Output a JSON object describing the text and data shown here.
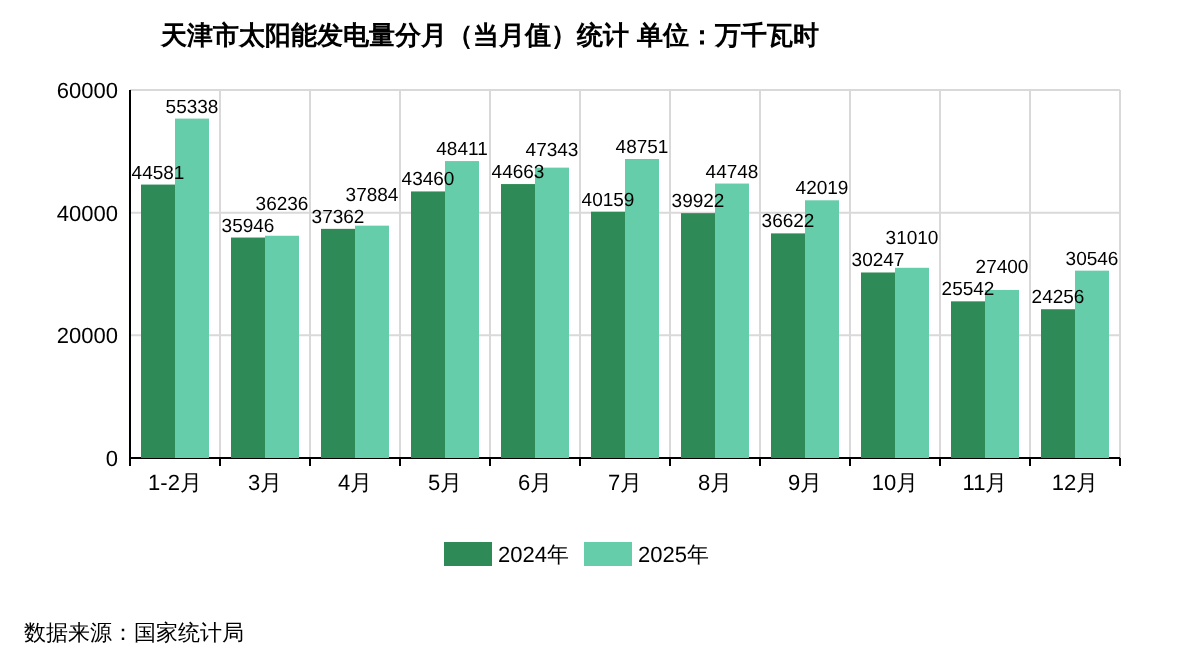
{
  "chart_data": {
    "type": "bar",
    "title": "天津市太阳能发电量分月（当月值）统计  单位：万千瓦时",
    "categories": [
      "1-2月",
      "3月",
      "4月",
      "5月",
      "6月",
      "7月",
      "8月",
      "9月",
      "10月",
      "11月",
      "12月"
    ],
    "series": [
      {
        "name": "2024年",
        "color": "#2e8b57",
        "values": [
          44581,
          35946,
          37362,
          43460,
          44663,
          40159,
          39922,
          36622,
          30247,
          25542,
          24256
        ]
      },
      {
        "name": "2025年",
        "color": "#66cdaa",
        "values": [
          55338,
          36236,
          37884,
          48411,
          47343,
          48751,
          44748,
          42019,
          31010,
          27400,
          30546
        ]
      }
    ],
    "ylim": [
      0,
      60000
    ],
    "yticks": [
      0,
      20000,
      40000,
      60000
    ],
    "grid": true,
    "legend": "bottom",
    "data_labels": true,
    "annotations": [
      "数据来源：国家统计局"
    ]
  }
}
